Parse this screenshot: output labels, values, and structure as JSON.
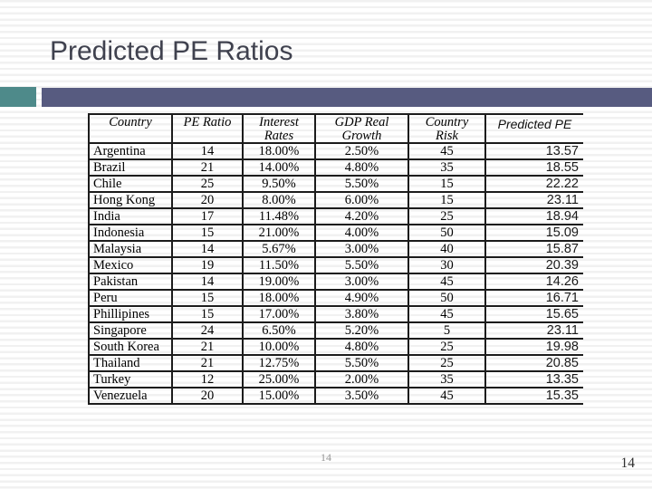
{
  "slide": {
    "title": "Predicted PE Ratios",
    "page_number_center": "14",
    "page_number_corner": "14",
    "accent_colors": {
      "teal": "#4e8a8a",
      "purple": "#575b80"
    }
  },
  "table": {
    "columns": [
      {
        "label": "Country",
        "lines": [
          "Country"
        ]
      },
      {
        "label": "PE Ratio",
        "lines": [
          "PE Ratio"
        ]
      },
      {
        "label": "Interest Rates",
        "lines": [
          "Interest",
          "Rates"
        ]
      },
      {
        "label": "GDP Real Growth",
        "lines": [
          "GDP Real",
          "Growth"
        ]
      },
      {
        "label": "Country Risk",
        "lines": [
          "Country",
          "Risk"
        ]
      },
      {
        "label": "Predicted PE",
        "lines": [
          "Predicted PE"
        ]
      }
    ],
    "rows": [
      [
        "Argentina",
        "14",
        "18.00%",
        "2.50%",
        "45",
        "13.57"
      ],
      [
        "Brazil",
        "21",
        "14.00%",
        "4.80%",
        "35",
        "18.55"
      ],
      [
        "Chile",
        "25",
        "9.50%",
        "5.50%",
        "15",
        "22.22"
      ],
      [
        "Hong Kong",
        "20",
        "8.00%",
        "6.00%",
        "15",
        "23.11"
      ],
      [
        "India",
        "17",
        "11.48%",
        "4.20%",
        "25",
        "18.94"
      ],
      [
        "Indonesia",
        "15",
        "21.00%",
        "4.00%",
        "50",
        "15.09"
      ],
      [
        "Malaysia",
        "14",
        "5.67%",
        "3.00%",
        "40",
        "15.87"
      ],
      [
        "Mexico",
        "19",
        "11.50%",
        "5.50%",
        "30",
        "20.39"
      ],
      [
        "Pakistan",
        "14",
        "19.00%",
        "3.00%",
        "45",
        "14.26"
      ],
      [
        "Peru",
        "15",
        "18.00%",
        "4.90%",
        "50",
        "16.71"
      ],
      [
        "Phillipines",
        "15",
        "17.00%",
        "3.80%",
        "45",
        "15.65"
      ],
      [
        "Singapore",
        "24",
        "6.50%",
        "5.20%",
        "5",
        "23.11"
      ],
      [
        "South Korea",
        "21",
        "10.00%",
        "4.80%",
        "25",
        "19.98"
      ],
      [
        "Thailand",
        "21",
        "12.75%",
        "5.50%",
        "25",
        "20.85"
      ],
      [
        "Turkey",
        "12",
        "25.00%",
        "2.00%",
        "35",
        "13.35"
      ],
      [
        "Venezuela",
        "20",
        "15.00%",
        "3.50%",
        "45",
        "15.35"
      ]
    ]
  }
}
